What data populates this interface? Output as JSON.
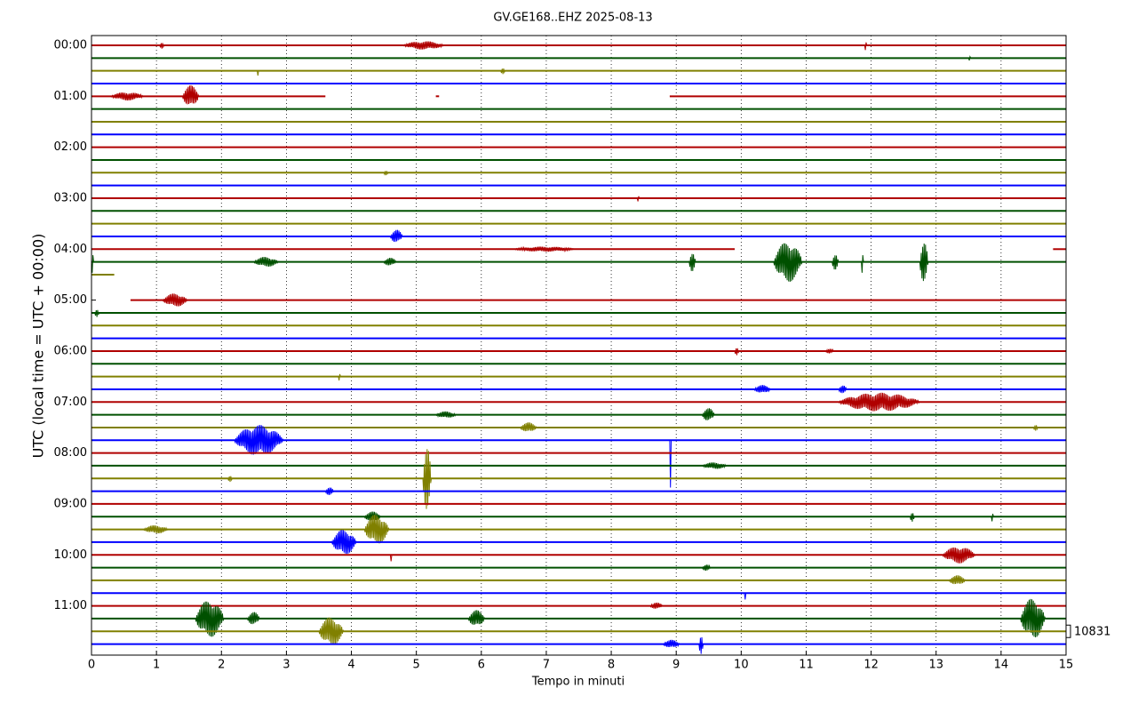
{
  "chart_data": {
    "type": "helicorder",
    "title": "GV.GE168..EHZ 2025-08-13",
    "xlabel": "Tempo in minuti",
    "ylabel": "UTC (local time = UTC + 00:00)",
    "xlim": [
      0,
      15
    ],
    "xticks": [
      0,
      1,
      2,
      3,
      4,
      5,
      6,
      7,
      8,
      9,
      10,
      11,
      12,
      13,
      14,
      15
    ],
    "ylim": [
      -11.5,
      718
    ],
    "yticks": [
      {
        "value": 0,
        "label": "00:00"
      },
      {
        "value": 60,
        "label": "01:00"
      },
      {
        "value": 120,
        "label": "02:00"
      },
      {
        "value": 180,
        "label": "03:00"
      },
      {
        "value": 240,
        "label": "04:00"
      },
      {
        "value": 300,
        "label": "05:00"
      },
      {
        "value": 360,
        "label": "06:00"
      },
      {
        "value": 420,
        "label": "07:00"
      },
      {
        "value": 480,
        "label": "08:00"
      },
      {
        "value": 540,
        "label": "09:00"
      },
      {
        "value": 600,
        "label": "10:00"
      },
      {
        "value": 660,
        "label": "11:00"
      }
    ],
    "grid": true,
    "colors": [
      "#b00000",
      "#005000",
      "#808000",
      "#0000ff"
    ],
    "scale_label": "10831",
    "scale_offset": 690,
    "traces": [
      {
        "offset": 0,
        "bursts": [
          [
            4.8,
            1.0,
            5
          ],
          [
            1.05,
            0.1,
            4
          ],
          [
            11.9,
            0.05,
            6
          ]
        ]
      },
      {
        "offset": 15,
        "bursts": [
          [
            13.5,
            0.05,
            3
          ]
        ]
      },
      {
        "offset": 30,
        "bursts": [
          [
            6.3,
            0.1,
            4
          ],
          [
            2.55,
            0.02,
            6
          ]
        ]
      },
      {
        "offset": 45,
        "bursts": []
      },
      {
        "offset": 60,
        "segments": [
          [
            0,
            3.6
          ],
          [
            5.3,
            5.35
          ],
          [
            8.9,
            15
          ]
        ],
        "bursts": [
          [
            1.4,
            0.4,
            13
          ],
          [
            0.3,
            0.8,
            5
          ]
        ]
      },
      {
        "offset": 75,
        "bursts": []
      },
      {
        "offset": 90,
        "bursts": []
      },
      {
        "offset": 105,
        "bursts": []
      },
      {
        "offset": 120,
        "bursts": []
      },
      {
        "offset": 135,
        "bursts": []
      },
      {
        "offset": 150,
        "bursts": [
          [
            4.5,
            0.1,
            3
          ]
        ]
      },
      {
        "offset": 165,
        "bursts": []
      },
      {
        "offset": 180,
        "bursts": [
          [
            8.4,
            0.05,
            4
          ]
        ]
      },
      {
        "offset": 195,
        "bursts": []
      },
      {
        "offset": 210,
        "bursts": []
      },
      {
        "offset": 225,
        "bursts": [
          [
            4.6,
            0.3,
            8
          ]
        ]
      },
      {
        "offset": 240,
        "segments": [
          [
            0,
            9.9
          ],
          [
            14.8,
            15
          ]
        ],
        "bursts": [
          [
            6.5,
            1.5,
            3
          ]
        ]
      },
      {
        "offset": 255,
        "bursts": [
          [
            10.5,
            0.7,
            24
          ],
          [
            12.75,
            0.2,
            25
          ],
          [
            9.2,
            0.15,
            12
          ],
          [
            11.4,
            0.15,
            10
          ],
          [
            11.85,
            0.05,
            14
          ],
          [
            2.5,
            0.6,
            6
          ],
          [
            4.5,
            0.3,
            5
          ],
          [
            0,
            0.05,
            14
          ]
        ]
      },
      {
        "offset": 270,
        "segments": [
          [
            0,
            0.35
          ]
        ],
        "bursts": []
      },
      {
        "offset": 285,
        "segments": [],
        "bursts": []
      },
      {
        "offset": 300,
        "segments": [
          [
            0.6,
            15
          ]
        ],
        "bursts": [
          [
            1.1,
            0.6,
            8
          ]
        ]
      },
      {
        "offset": 315,
        "bursts": [
          [
            0.05,
            0.1,
            5
          ]
        ]
      },
      {
        "offset": 330,
        "bursts": []
      },
      {
        "offset": 345,
        "bursts": []
      },
      {
        "offset": 360,
        "bursts": [
          [
            9.9,
            0.1,
            5
          ],
          [
            11.3,
            0.2,
            3
          ]
        ]
      },
      {
        "offset": 375,
        "bursts": []
      },
      {
        "offset": 390,
        "bursts": [
          [
            3.8,
            0.05,
            5
          ]
        ]
      },
      {
        "offset": 405,
        "bursts": [
          [
            10.2,
            0.4,
            5
          ],
          [
            11.5,
            0.2,
            5
          ]
        ]
      },
      {
        "offset": 420,
        "bursts": [
          [
            11.5,
            2.0,
            11
          ]
        ]
      },
      {
        "offset": 435,
        "bursts": [
          [
            9.4,
            0.3,
            8
          ],
          [
            5.3,
            0.5,
            4
          ]
        ]
      },
      {
        "offset": 450,
        "bursts": [
          [
            6.6,
            0.4,
            6
          ],
          [
            14.5,
            0.1,
            4
          ]
        ]
      },
      {
        "offset": 465,
        "bursts": [
          [
            2.2,
            1.2,
            18
          ],
          [
            8.9,
            0.02,
            60
          ]
        ]
      },
      {
        "offset": 480,
        "bursts": []
      },
      {
        "offset": 495,
        "bursts": [
          [
            9.4,
            0.6,
            4
          ]
        ]
      },
      {
        "offset": 510,
        "bursts": [
          [
            5.1,
            0.2,
            40
          ],
          [
            2.1,
            0.1,
            4
          ]
        ]
      },
      {
        "offset": 525,
        "bursts": [
          [
            3.6,
            0.2,
            5
          ]
        ]
      },
      {
        "offset": 540,
        "bursts": []
      },
      {
        "offset": 555,
        "bursts": [
          [
            4.2,
            0.4,
            6
          ],
          [
            12.6,
            0.1,
            6
          ],
          [
            13.85,
            0.05,
            6
          ]
        ]
      },
      {
        "offset": 570,
        "bursts": [
          [
            4.2,
            0.6,
            18
          ],
          [
            0.8,
            0.6,
            5
          ]
        ]
      },
      {
        "offset": 585,
        "bursts": [
          [
            3.7,
            0.6,
            15
          ]
        ]
      },
      {
        "offset": 600,
        "bursts": [
          [
            13.1,
            0.8,
            10
          ],
          [
            4.6,
            0.02,
            8
          ]
        ]
      },
      {
        "offset": 615,
        "bursts": [
          [
            9.4,
            0.2,
            4
          ]
        ]
      },
      {
        "offset": 630,
        "bursts": [
          [
            13.2,
            0.4,
            6
          ]
        ]
      },
      {
        "offset": 645,
        "bursts": [
          [
            10.05,
            0.02,
            8
          ]
        ]
      },
      {
        "offset": 660,
        "bursts": [
          [
            8.6,
            0.3,
            4
          ]
        ]
      },
      {
        "offset": 675,
        "bursts": [
          [
            1.6,
            0.7,
            22
          ],
          [
            14.3,
            0.6,
            24
          ],
          [
            5.8,
            0.4,
            10
          ],
          [
            2.4,
            0.3,
            8
          ]
        ]
      },
      {
        "offset": 690,
        "bursts": [
          [
            3.5,
            0.6,
            17
          ]
        ]
      },
      {
        "offset": 705,
        "bursts": [
          [
            9.35,
            0.1,
            12
          ],
          [
            8.8,
            0.4,
            5
          ]
        ]
      }
    ]
  }
}
